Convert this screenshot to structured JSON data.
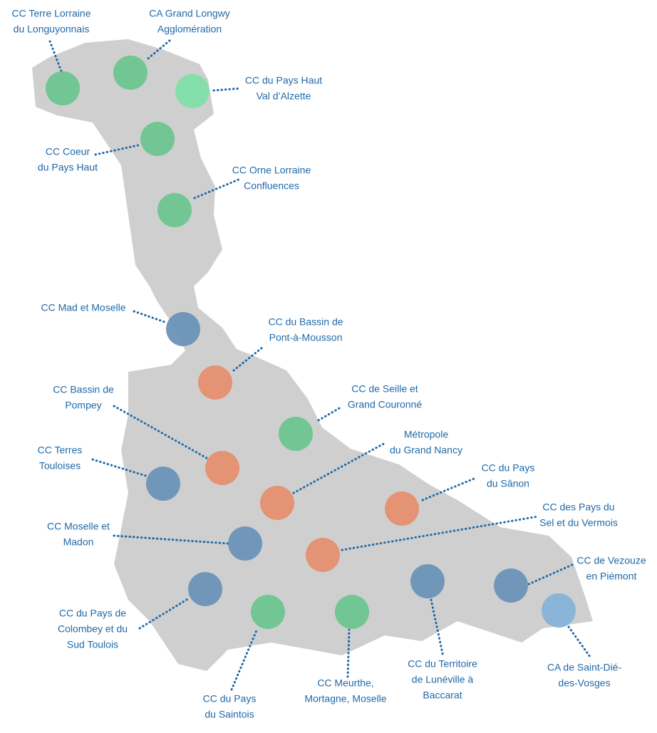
{
  "labels": [
    [
      "CC Terre Lorraine",
      "du Longuyonnais"
    ],
    [
      "CA Grand Longwy",
      "Agglomération"
    ],
    [
      "CC du Pays Haut",
      "Val d’Alzette"
    ],
    [
      "CC Coeur",
      "du Pays Haut"
    ],
    [
      "CC Orne Lorraine",
      "Confluences"
    ],
    [
      "CC Mad et Moselle"
    ],
    [
      "CC du Bassin de",
      "Pont-à-Mousson"
    ],
    [
      "CC Bassin de",
      "Pompey"
    ],
    [
      "CC de Seille et",
      "Grand Couronné"
    ],
    [
      "CC Terres",
      "Touloises"
    ],
    [
      "Métropole",
      "du Grand Nancy"
    ],
    [
      "CC du Pays",
      "du Sânon"
    ],
    [
      "CC Moselle et",
      "Madon"
    ],
    [
      "CC des Pays du",
      "Sel et du Vermois"
    ],
    [
      "CC de Vezouze",
      "en Piémont"
    ],
    [
      "CC du Territoire",
      "de Lunéville à",
      "Baccarat"
    ],
    [
      "CA de Saint-Dié-",
      "des-Vosges"
    ],
    [
      "CC du Pays de",
      "Colombey et du",
      "Sud Toulois"
    ],
    [
      "CC du Pays",
      "du Saintois"
    ],
    [
      "CC Meurthe,",
      "Mortagne, Moselle"
    ]
  ]
}
